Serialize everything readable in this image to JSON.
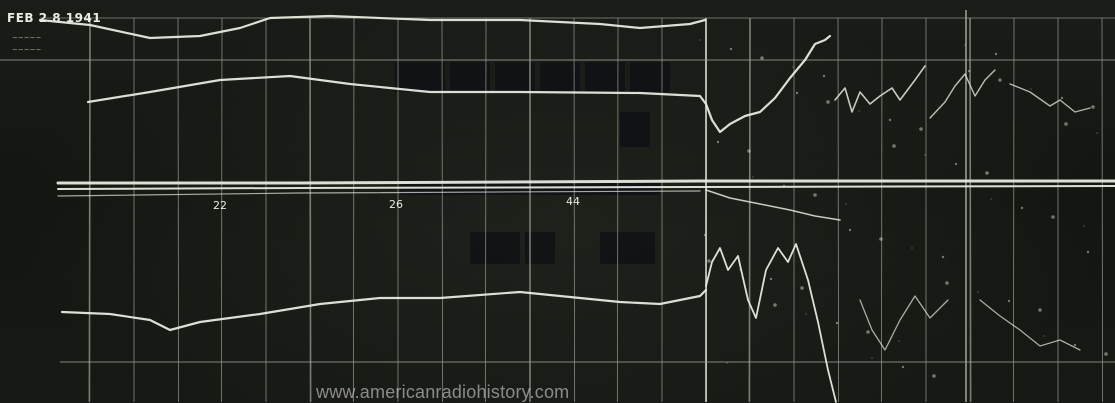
{
  "photo": {
    "date_stamp": "FEB 2 8 1941",
    "grid_ticks": [
      "22",
      "26",
      "44"
    ],
    "watermark": "www.americanradiohistory.com"
  },
  "colors": {
    "background": "#141613",
    "trace": "#e6eadf",
    "grid": "#9aa096"
  }
}
